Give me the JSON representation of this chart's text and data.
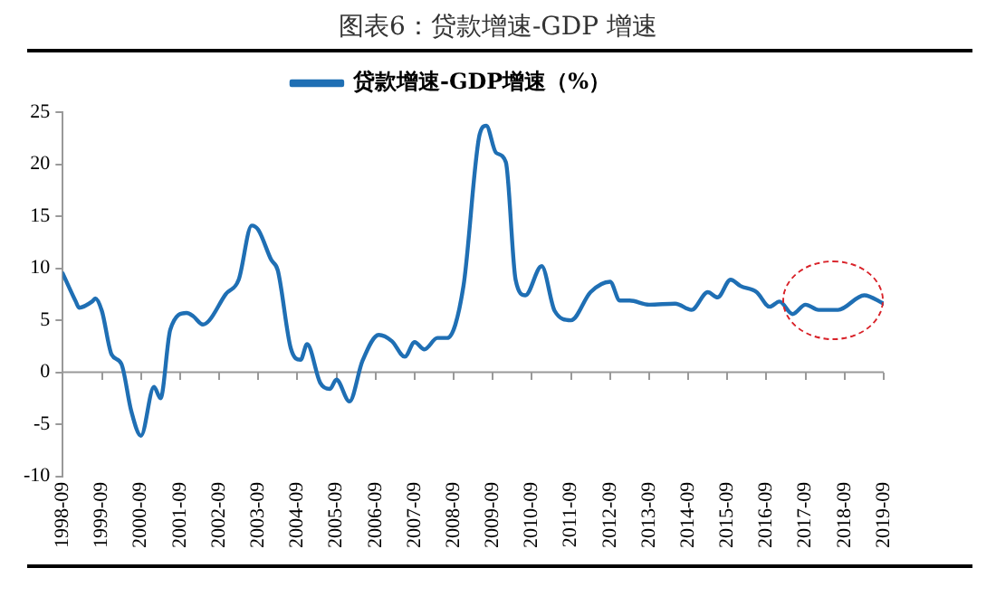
{
  "chart_data": {
    "type": "line",
    "title": "图表6：贷款增速-GDP 增速",
    "legend": "top",
    "x": [
      "1998-09",
      "1999-01",
      "1999-02",
      "1999-06",
      "1999-07",
      "1999-09",
      "1999-12",
      "2000-03",
      "2000-06",
      "2000-09",
      "2001-01",
      "2001-03",
      "2001-06",
      "2001-11",
      "2002-01",
      "2002-04",
      "2002-06",
      "2002-11",
      "2003-03",
      "2003-07",
      "2003-09",
      "2004-01",
      "2004-03",
      "2004-07",
      "2004-10",
      "2004-12",
      "2005-04",
      "2005-07",
      "2005-09",
      "2006-01",
      "2006-05",
      "2006-10",
      "2007-02",
      "2007-06",
      "2007-09",
      "2007-12",
      "2008-04",
      "2008-07",
      "2008-12",
      "2009-05",
      "2009-07",
      "2009-10",
      "2010-01",
      "2010-04",
      "2010-07",
      "2010-12",
      "2011-04",
      "2011-09",
      "2012-03",
      "2012-09",
      "2012-12",
      "2013-03",
      "2013-09",
      "2014-05",
      "2014-10",
      "2015-03",
      "2015-06",
      "2015-10",
      "2016-01",
      "2016-06",
      "2016-10",
      "2017-01",
      "2017-05",
      "2017-09",
      "2018-01",
      "2018-07",
      "2019-03",
      "2019-09"
    ],
    "series": [
      {
        "name": "贷款增速-GDP增速（%）",
        "color": "#1f6fb4",
        "values": [
          9.5,
          6.8,
          6.2,
          6.8,
          7.1,
          5.9,
          1.7,
          0.8,
          -3.7,
          -6.1,
          -1.4,
          -2.5,
          4.1,
          5.7,
          5.4,
          4.6,
          5.0,
          7.5,
          8.9,
          14.1,
          13.7,
          10.8,
          9.8,
          2.3,
          1.2,
          2.7,
          -1.0,
          -1.6,
          -0.7,
          -2.8,
          1.1,
          3.6,
          3.0,
          1.5,
          2.9,
          2.2,
          3.3,
          3.3,
          8.3,
          22.9,
          23.7,
          21.1,
          20.2,
          8.9,
          7.4,
          10.2,
          5.9,
          5.0,
          7.7,
          8.7,
          6.9,
          6.9,
          6.5,
          6.6,
          6.0,
          7.7,
          7.2,
          8.9,
          8.3,
          7.7,
          6.3,
          6.8,
          5.6,
          6.5,
          6.0,
          6.0,
          7.4,
          6.6
        ]
      }
    ],
    "ylim": [
      -10,
      25
    ],
    "yticks": [
      -10,
      -5,
      0,
      5,
      10,
      15,
      20,
      25
    ],
    "xlim": [
      "1998-09",
      "2019-09"
    ],
    "xticks": [
      "1998-09",
      "1999-09",
      "2000-09",
      "2001-09",
      "2002-09",
      "2003-09",
      "2004-09",
      "2005-09",
      "2006-09",
      "2007-09",
      "2008-09",
      "2009-09",
      "2010-09",
      "2011-09",
      "2012-09",
      "2013-09",
      "2014-09",
      "2015-09",
      "2016-09",
      "2017-09",
      "2018-09",
      "2019-09"
    ],
    "ref_lines": [
      {
        "axis": "y",
        "value": 0,
        "color": "#999999"
      }
    ],
    "grid": false,
    "marker": "none",
    "line_style": "solid"
  }
}
